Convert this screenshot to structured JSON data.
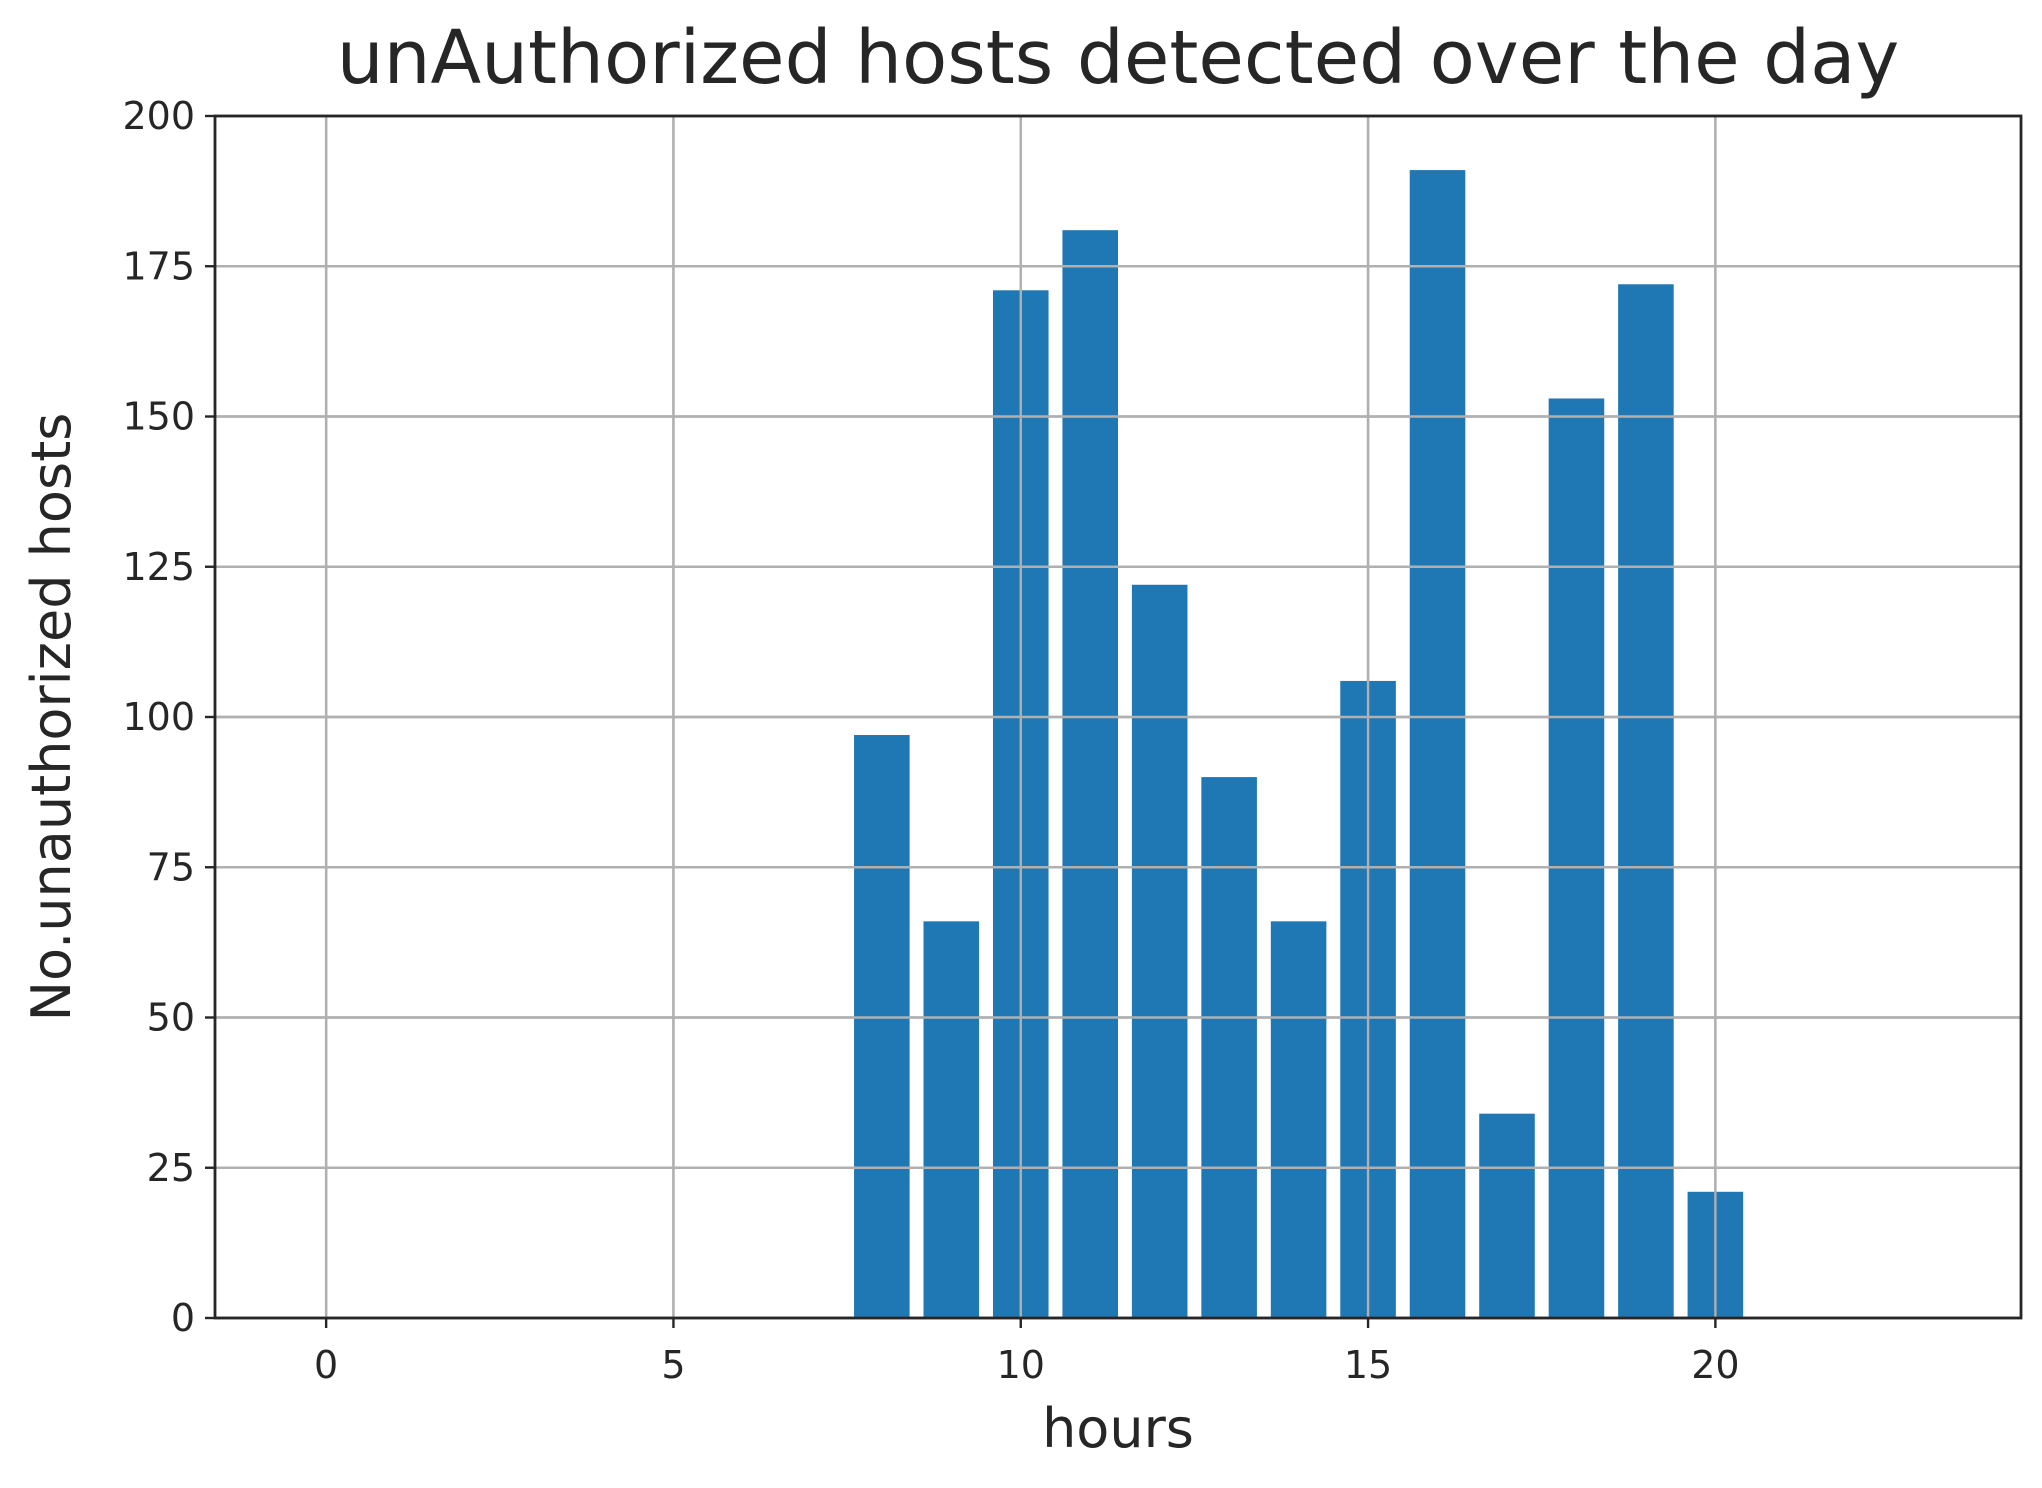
{
  "chart_data": {
    "type": "bar",
    "title": "unAuthorized hosts detected over the day",
    "xlabel": "hours",
    "ylabel": "No.unauthorized hosts",
    "x": [
      8,
      9,
      10,
      11,
      12,
      13,
      14,
      15,
      16,
      17,
      18,
      19,
      20
    ],
    "values": [
      97,
      66,
      171,
      181,
      122,
      90,
      66,
      106,
      191,
      34,
      153,
      172,
      21
    ],
    "xlim": [
      -1.6,
      24.4
    ],
    "ylim": [
      0,
      200
    ],
    "xticks": [
      0,
      5,
      10,
      15,
      20
    ],
    "yticks": [
      0,
      25,
      50,
      75,
      100,
      125,
      150,
      175,
      200
    ],
    "xtick_labels": [
      "0",
      "5",
      "10",
      "15",
      "20"
    ],
    "ytick_labels": [
      "0",
      "25",
      "50",
      "75",
      "100",
      "125",
      "150",
      "175",
      "200"
    ],
    "grid": true,
    "bar_color": "#1f77b4"
  }
}
